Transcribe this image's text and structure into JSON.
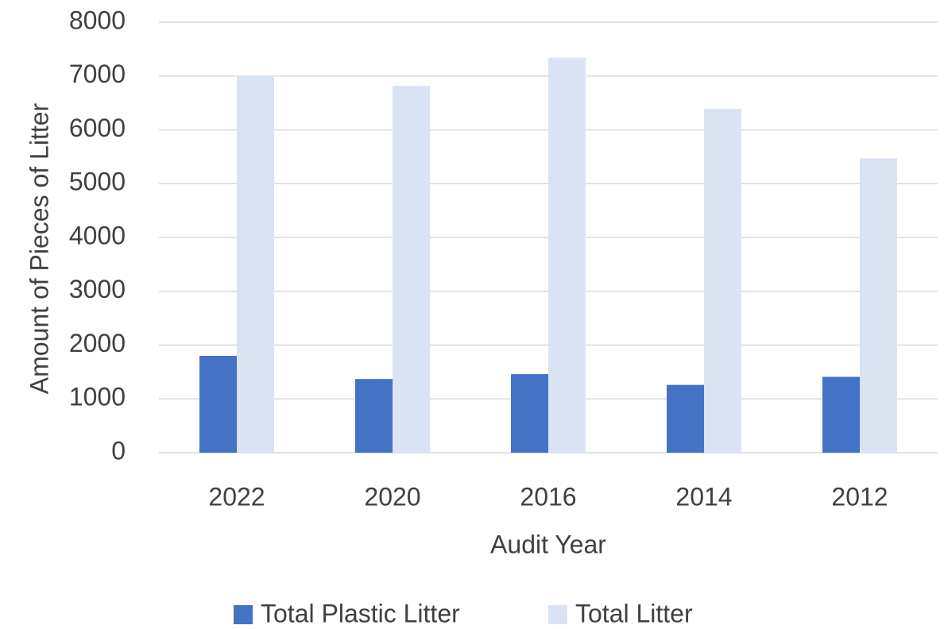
{
  "chart_data": {
    "type": "bar",
    "title": "",
    "xlabel": "Audit Year",
    "ylabel": "Amount of Pieces of Litter",
    "categories": [
      "2022",
      "2020",
      "2016",
      "2014",
      "2012"
    ],
    "series": [
      {
        "name": "Total Plastic Litter",
        "color": "#4472C4",
        "values": [
          1800,
          1370,
          1460,
          1260,
          1410
        ]
      },
      {
        "name": "Total Litter",
        "color": "#DAE3F3",
        "values": [
          7000,
          6820,
          7340,
          6390,
          5470
        ]
      }
    ],
    "ylim": [
      0,
      8000
    ],
    "yticks": [
      "0",
      "1000",
      "2000",
      "3000",
      "4000",
      "5000",
      "6000",
      "7000",
      "8000"
    ],
    "grid": true,
    "gridColor": "#D9D9D9",
    "legend": "bottom"
  }
}
